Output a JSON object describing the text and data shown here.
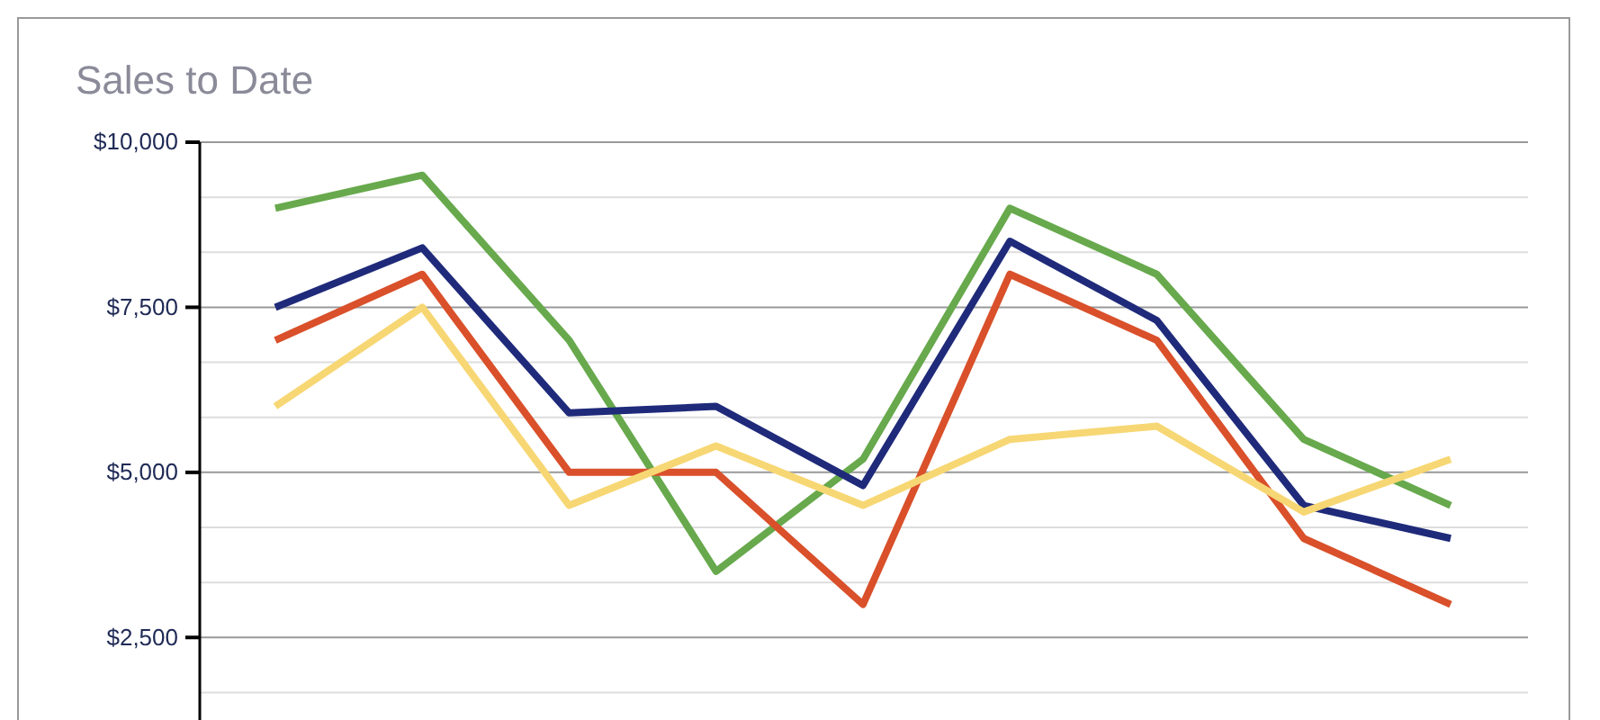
{
  "chart_data": {
    "type": "line",
    "title": "Sales to Date",
    "categories": [
      null,
      null,
      null,
      null,
      null,
      null,
      null,
      null,
      null
    ],
    "series": [
      {
        "color": "#67a94c",
        "values": [
          9000,
          9500,
          7000,
          3500,
          5200,
          9000,
          8000,
          5500,
          4500
        ]
      },
      {
        "color": "#1f2a7a",
        "values": [
          7500,
          8400,
          5900,
          6000,
          4800,
          8500,
          7300,
          4500,
          4000
        ]
      },
      {
        "color": "#d9502a",
        "values": [
          7000,
          8000,
          5000,
          5000,
          3000,
          8000,
          7000,
          4000,
          3000
        ]
      },
      {
        "color": "#f7d774",
        "values": [
          6000,
          7500,
          4500,
          5400,
          4500,
          5500,
          5700,
          4400,
          5200
        ]
      }
    ],
    "ylim": [
      1250,
      10000
    ],
    "yticks": [
      {
        "value": 1666.67,
        "label": null
      },
      {
        "value": 2500,
        "label": "$2,500"
      },
      {
        "value": 3333.33,
        "label": null
      },
      {
        "value": 4166.67,
        "label": null
      },
      {
        "value": 5000,
        "label": "$5,000"
      },
      {
        "value": 5833.33,
        "label": null
      },
      {
        "value": 6666.67,
        "label": null
      },
      {
        "value": 7500,
        "label": "$7,500"
      },
      {
        "value": 8333.33,
        "label": null
      },
      {
        "value": 9166.67,
        "label": null
      },
      {
        "value": 10000,
        "label": "$10,000"
      }
    ],
    "grid": "y",
    "marker": "none",
    "line_style": "solid",
    "tick_labels": "y"
  }
}
